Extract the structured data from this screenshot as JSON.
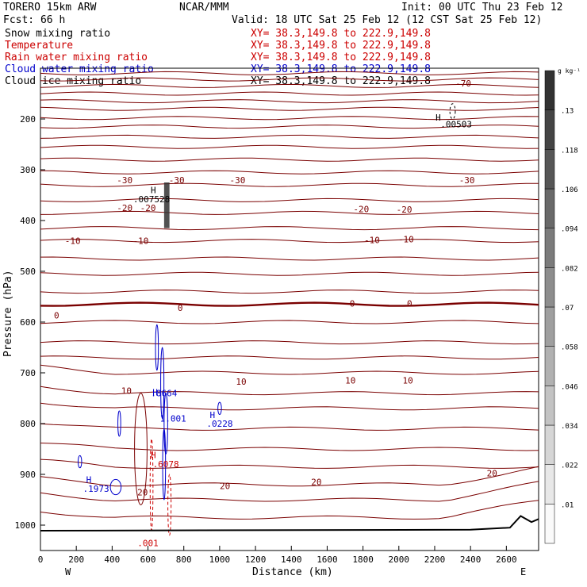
{
  "header": {
    "model": "TORERO  15km ARW",
    "org": "NCAR/MMM",
    "init": "Init: 00 UTC Thu 23 Feb 12",
    "fcst": "Fcst:    66 h",
    "valid": "Valid: 18 UTC Sat 25 Feb 12 (12 CST Sat 25 Feb 12)"
  },
  "fields": [
    {
      "name": "Snow mixing ratio",
      "xy": "",
      "color": "#000000"
    },
    {
      "name": "Temperature",
      "xy": "XY=  38.3,149.8 to 222.9,149.8",
      "color": "#cc0000"
    },
    {
      "name": "Rain water mixing ratio",
      "xy": "XY=  38.3,149.8 to 222.9,149.8",
      "color": "#cc0000"
    },
    {
      "name": "Cloud water mixing ratio",
      "xy": "XY=  38.3,149.8 to 222.9,149.8",
      "color": "#0000cc"
    },
    {
      "name": "Cloud ice mixing ratio",
      "xy": "XY=  38.3,149.8 to 222.9,149.8",
      "color": "#000000"
    }
  ],
  "snow_xy": "XY=  38.3,149.8 to 222.9,149.8",
  "chart_data": {
    "type": "cross-section",
    "xlabel": "Distance (km)",
    "ylabel": "Pressure (hPa)",
    "xlim": [
      0,
      2780
    ],
    "ylim": [
      1050,
      100
    ],
    "x_ticks": [
      0,
      200,
      400,
      600,
      800,
      1000,
      1200,
      1400,
      1600,
      1800,
      2000,
      2200,
      2400,
      2600
    ],
    "y_ticks": [
      200,
      300,
      400,
      500,
      600,
      700,
      800,
      900,
      1000
    ],
    "end_labels": {
      "west": "W",
      "east": "E"
    },
    "colorbar": {
      "unit": "g kg⁻¹",
      "ticks": [
        ".01",
        ".022",
        ".034",
        ".046",
        ".058",
        ".07",
        ".082",
        ".094",
        ".106",
        ".118",
        ".13"
      ]
    },
    "temperature_isotherm_labels": [
      {
        "x": 2360,
        "p": 130,
        "text": "-70"
      },
      {
        "x": 470,
        "p": 320,
        "text": "-30"
      },
      {
        "x": 760,
        "p": 320,
        "text": "-30"
      },
      {
        "x": 1100,
        "p": 320,
        "text": "-30"
      },
      {
        "x": 2380,
        "p": 320,
        "text": "-30"
      },
      {
        "x": 470,
        "p": 375,
        "text": "-20"
      },
      {
        "x": 600,
        "p": 375,
        "text": "-20"
      },
      {
        "x": 1790,
        "p": 377,
        "text": "-20"
      },
      {
        "x": 2030,
        "p": 378,
        "text": "-20"
      },
      {
        "x": 180,
        "p": 440,
        "text": "-10"
      },
      {
        "x": 560,
        "p": 440,
        "text": "-10"
      },
      {
        "x": 1850,
        "p": 438,
        "text": "-10"
      },
      {
        "x": 2040,
        "p": 437,
        "text": "-10"
      },
      {
        "x": 90,
        "p": 587,
        "text": "0"
      },
      {
        "x": 780,
        "p": 572,
        "text": "0"
      },
      {
        "x": 1740,
        "p": 563,
        "text": "0"
      },
      {
        "x": 2060,
        "p": 563,
        "text": "0"
      },
      {
        "x": 480,
        "p": 735,
        "text": "10"
      },
      {
        "x": 1120,
        "p": 717,
        "text": "10"
      },
      {
        "x": 1730,
        "p": 715,
        "text": "10"
      },
      {
        "x": 2050,
        "p": 715,
        "text": "10"
      },
      {
        "x": 1030,
        "p": 923,
        "text": "20"
      },
      {
        "x": 1540,
        "p": 915,
        "text": "20"
      },
      {
        "x": 2520,
        "p": 898,
        "text": "20"
      },
      {
        "x": 570,
        "p": 935,
        "text": "20"
      }
    ],
    "maxima_labels": [
      {
        "x": 2320,
        "p": 210,
        "text": ".00503",
        "color": "#000000"
      },
      {
        "x": 620,
        "p": 358,
        "text": ".007528",
        "color": "#000000"
      },
      {
        "x": 690,
        "p": 740,
        "text": ".8664",
        "color": "#0000cc"
      },
      {
        "x": 740,
        "p": 790,
        "text": "1.001",
        "color": "#0000cc"
      },
      {
        "x": 1000,
        "p": 800,
        "text": ".0228",
        "color": "#0000cc"
      },
      {
        "x": 310,
        "p": 928,
        "text": ".1973",
        "color": "#0000cc"
      },
      {
        "x": 700,
        "p": 880,
        "text": ".6078",
        "color": "#cc0000"
      },
      {
        "x": 600,
        "p": 1035,
        "text": ".001",
        "color": "#cc0000"
      }
    ],
    "h_markers": [
      {
        "x": 2220,
        "p": 197,
        "color": "#000000"
      },
      {
        "x": 630,
        "p": 340,
        "color": "#000000"
      },
      {
        "x": 640,
        "p": 738,
        "color": "#0000cc"
      },
      {
        "x": 960,
        "p": 783,
        "color": "#0000cc"
      },
      {
        "x": 270,
        "p": 910,
        "color": "#0000cc"
      },
      {
        "x": 630,
        "p": 862,
        "color": "#cc0000"
      }
    ]
  }
}
